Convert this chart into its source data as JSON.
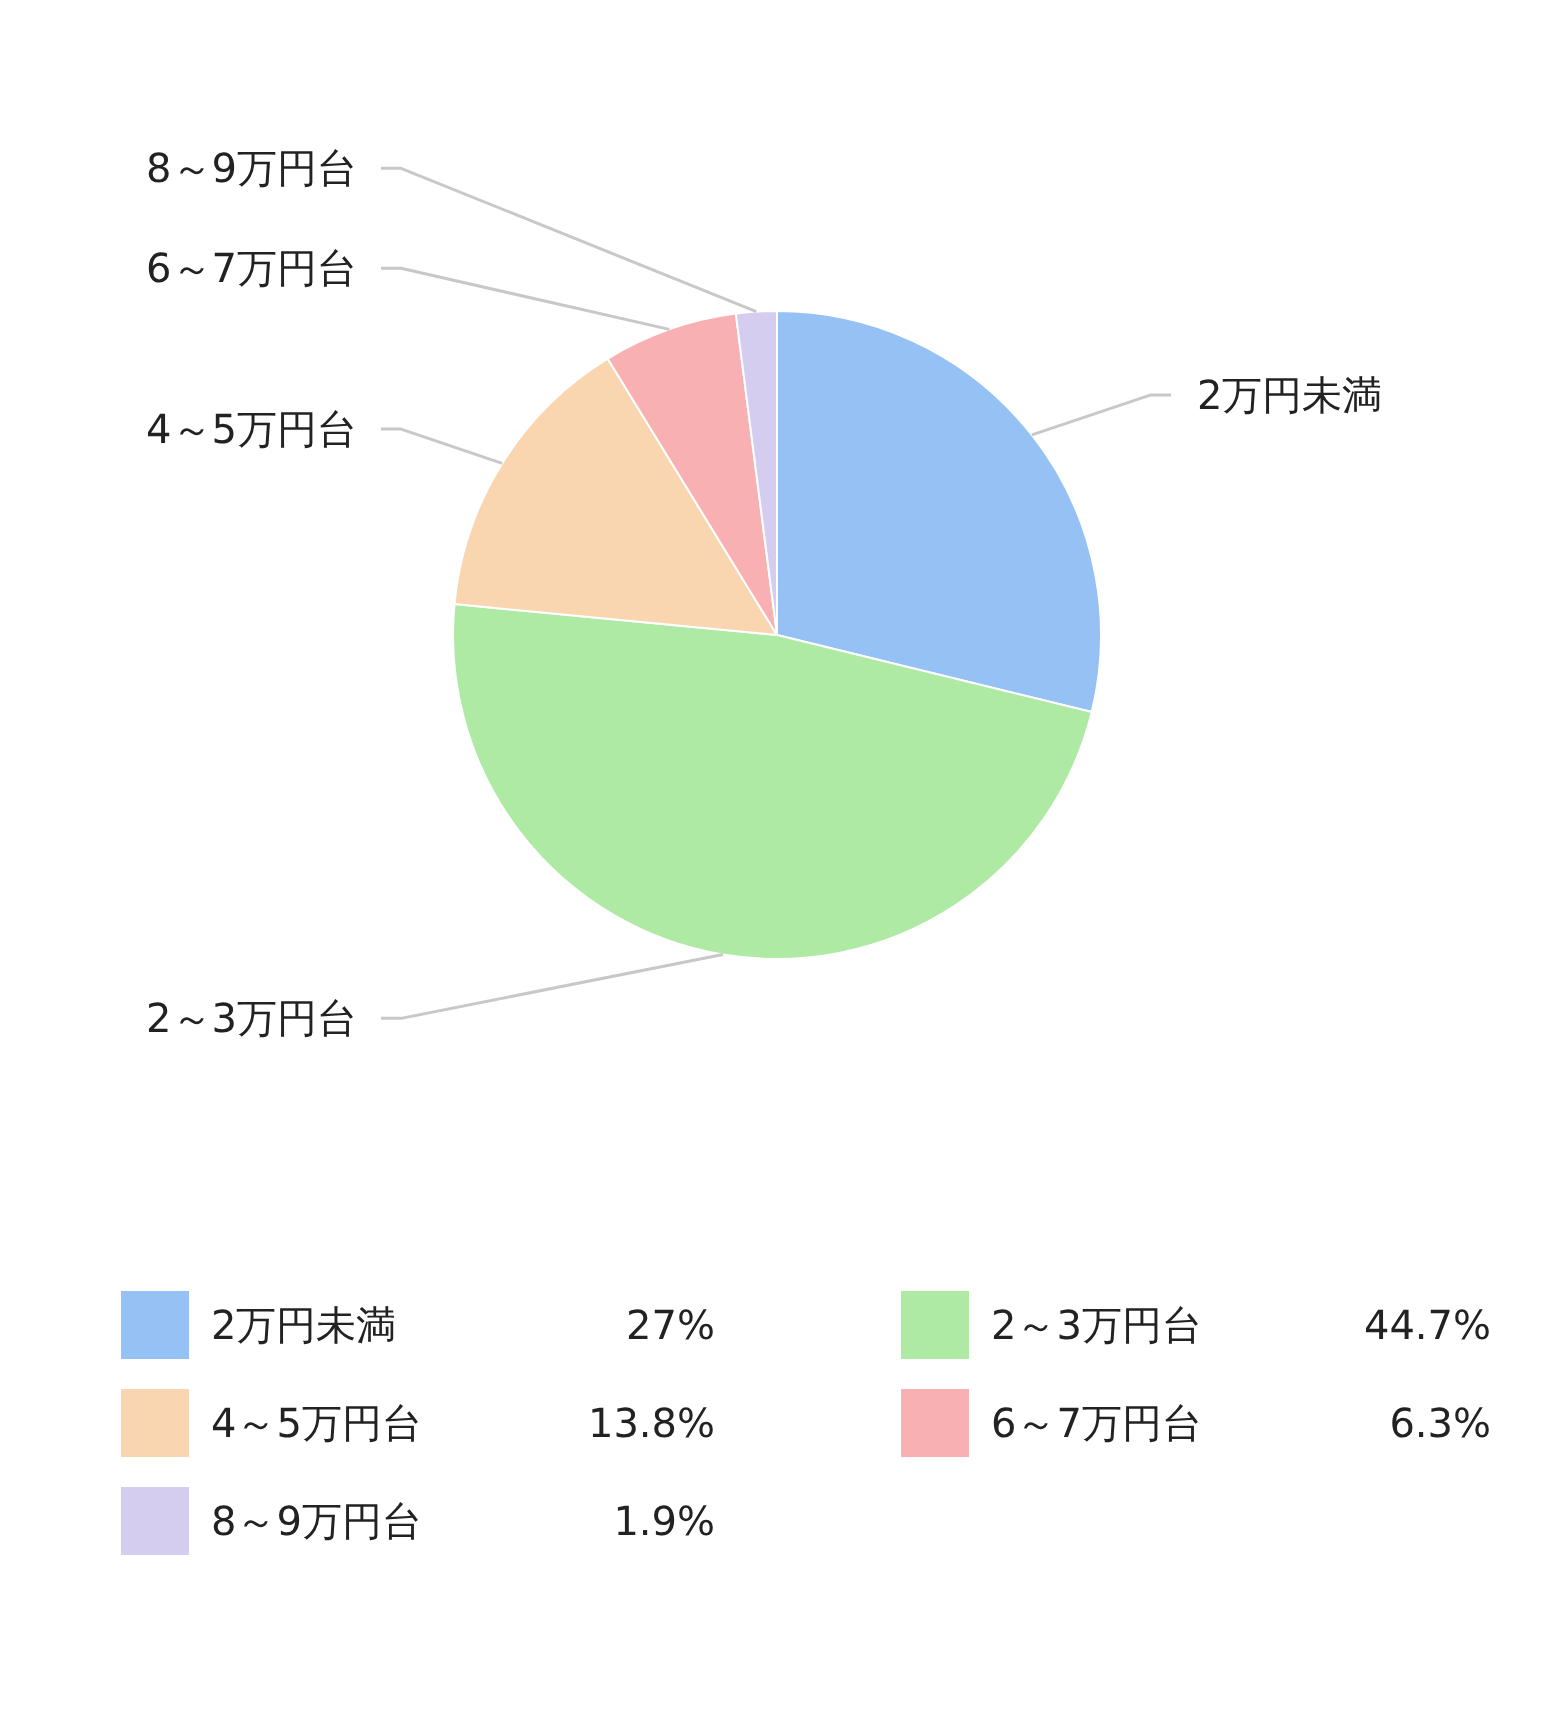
{
  "chart_data": {
    "type": "pie",
    "categories": [
      "2万円未満",
      "2～3万円台",
      "4～5万円台",
      "6～7万円台",
      "8～9万円台"
    ],
    "values": [
      27,
      44.7,
      13.8,
      6.3,
      1.9
    ],
    "value_labels": [
      "27%",
      "44.7%",
      "13.8%",
      "6.3%",
      "1.9%"
    ],
    "colors": [
      "#96c1f5",
      "#aeeaa3",
      "#f9d6b0",
      "#f9b0b2",
      "#d5cdf0"
    ],
    "legend": "bottom"
  }
}
